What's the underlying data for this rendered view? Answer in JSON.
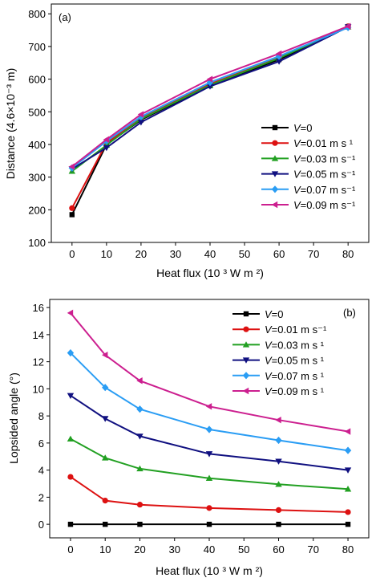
{
  "chart_data": [
    {
      "type": "line",
      "panel_label": "(a)",
      "title": "",
      "xlabel": "Heat flux (10 ³ W m ²)",
      "ylabel": "Distance (4.6×10⁻³ m)",
      "x": [
        0,
        10,
        20,
        40,
        60,
        80
      ],
      "xticks": [
        "0",
        "10",
        "20",
        "30",
        "40",
        "50",
        "60",
        "70",
        "80"
      ],
      "xlim": [
        -6,
        86
      ],
      "ylim": [
        100,
        830
      ],
      "yticks": [
        "100",
        "200",
        "300",
        "400",
        "500",
        "600",
        "700",
        "800"
      ],
      "grid": false,
      "legend_placement": "right",
      "legend_prefix": "V",
      "series": [
        {
          "name": "=0",
          "color": "#000000",
          "marker": "square",
          "values": [
            185,
            400,
            475,
            580,
            660,
            760
          ]
        },
        {
          "name": "=0.01 m s ¹",
          "color": "#dd1111",
          "marker": "circle",
          "values": [
            205,
            405,
            480,
            585,
            665,
            762
          ]
        },
        {
          "name": "=0.03 m s⁻¹",
          "color": "#22a022",
          "marker": "triangle-up",
          "values": [
            318,
            398,
            478,
            582,
            664,
            760
          ]
        },
        {
          "name": "=0.05 m s⁻¹",
          "color": "#101080",
          "marker": "triangle-down",
          "values": [
            325,
            390,
            468,
            578,
            654,
            760
          ]
        },
        {
          "name": "=0.07 m s⁻¹",
          "color": "#2a9df4",
          "marker": "diamond",
          "values": [
            328,
            410,
            485,
            590,
            670,
            758
          ]
        },
        {
          "name": "=0.09 m s⁻¹",
          "color": "#cc1f8f",
          "marker": "triangle-left",
          "values": [
            332,
            415,
            492,
            600,
            678,
            762
          ]
        }
      ]
    },
    {
      "type": "line",
      "panel_label": "(b)",
      "title": "",
      "xlabel": "Heat flux (10 ³ W m ²)",
      "ylabel": "Lopsided angle (°)",
      "x": [
        0,
        10,
        20,
        40,
        60,
        80
      ],
      "xticks": [
        "0",
        "10",
        "20",
        "30",
        "40",
        "50",
        "60",
        "70",
        "80"
      ],
      "xlim": [
        -6,
        86
      ],
      "ylim": [
        -1,
        16.6
      ],
      "yticks": [
        "0",
        "2",
        "4",
        "6",
        "8",
        "10",
        "12",
        "14",
        "16"
      ],
      "grid": false,
      "legend_placement": "top-right",
      "legend_prefix": "V",
      "series": [
        {
          "name": "=0",
          "color": "#000000",
          "marker": "square",
          "values": [
            0,
            0,
            0,
            0,
            0,
            0
          ]
        },
        {
          "name": "=0.01 m s⁻¹",
          "color": "#dd1111",
          "marker": "circle",
          "values": [
            3.5,
            1.75,
            1.45,
            1.2,
            1.05,
            0.9
          ]
        },
        {
          "name": "=0.03 m s ¹",
          "color": "#22a022",
          "marker": "triangle-up",
          "values": [
            6.3,
            4.9,
            4.1,
            3.4,
            2.95,
            2.6
          ]
        },
        {
          "name": "=0.05 m s ¹",
          "color": "#101080",
          "marker": "triangle-down",
          "values": [
            9.5,
            7.8,
            6.5,
            5.2,
            4.65,
            4.0
          ]
        },
        {
          "name": "=0.07 m s ¹",
          "color": "#2a9df4",
          "marker": "diamond",
          "values": [
            12.65,
            10.1,
            8.5,
            7.0,
            6.2,
            5.45
          ]
        },
        {
          "name": "=0.09 m s ¹",
          "color": "#cc1f8f",
          "marker": "triangle-left",
          "values": [
            15.6,
            12.5,
            10.6,
            8.7,
            7.7,
            6.85
          ]
        }
      ]
    }
  ]
}
